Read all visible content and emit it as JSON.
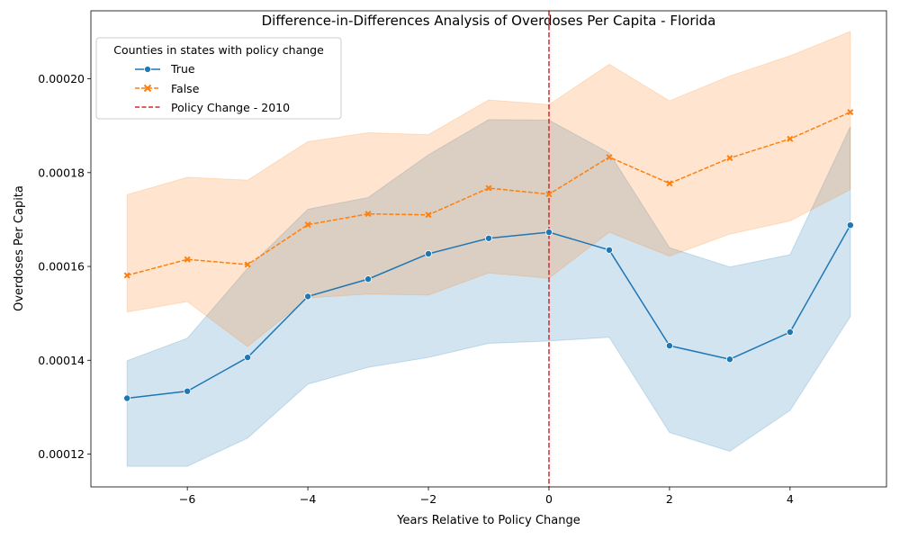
{
  "chart_data": {
    "type": "line",
    "title": "Difference-in-Differences Analysis of Overdoses Per Capita - Florida",
    "xlabel": "Years Relative to Policy Change",
    "ylabel": "Overdoses Per Capita",
    "xlim": [
      -7.6,
      5.6
    ],
    "ylim": [
      0.000113,
      0.0002145
    ],
    "x": [
      -7,
      -6,
      -5,
      -4,
      -3,
      -2,
      -1,
      0,
      1,
      2,
      3,
      4,
      5
    ],
    "x_ticks": [
      -6,
      -4,
      -2,
      0,
      2,
      4
    ],
    "x_tick_labels": [
      "−6",
      "−4",
      "−2",
      "0",
      "2",
      "4"
    ],
    "y_ticks": [
      0.00012,
      0.00014,
      0.00016,
      0.00018,
      0.0002
    ],
    "y_tick_labels": [
      "0.00012",
      "0.00014",
      "0.00016",
      "0.00018",
      "0.00020"
    ],
    "grid": false,
    "legend": {
      "title": "Counties in states with policy change",
      "placement": "top-left",
      "entries": [
        "True",
        "False",
        "Policy Change - 2010"
      ]
    },
    "series": [
      {
        "name": "True",
        "color": "#1f77b4",
        "line_style": "solid",
        "marker": "circle",
        "values": [
          0.0001319,
          0.0001334,
          0.0001406,
          0.0001536,
          0.0001573,
          0.0001627,
          0.000166,
          0.0001673,
          0.0001635,
          0.0001431,
          0.0001402,
          0.000146,
          0.0001688
        ],
        "ci_lower": [
          0.0001174,
          0.0001174,
          0.0001234,
          0.0001349,
          0.0001385,
          0.0001406,
          0.0001436,
          0.0001441,
          0.0001449,
          0.0001246,
          0.0001206,
          0.0001293,
          0.0001493
        ],
        "ci_upper": [
          0.0001399,
          0.0001447,
          0.0001596,
          0.0001722,
          0.0001747,
          0.0001838,
          0.0001913,
          0.0001912,
          0.0001842,
          0.000164,
          0.0001599,
          0.0001625,
          0.0001898
        ]
      },
      {
        "name": "False",
        "color": "#ff7f0e",
        "line_style": "dashed",
        "marker": "x",
        "values": [
          0.0001581,
          0.0001615,
          0.0001604,
          0.0001689,
          0.0001712,
          0.000171,
          0.0001767,
          0.0001754,
          0.0001833,
          0.0001777,
          0.0001831,
          0.0001872,
          0.0001929
        ],
        "ci_lower": [
          0.0001503,
          0.0001525,
          0.0001429,
          0.0001533,
          0.0001541,
          0.0001539,
          0.0001586,
          0.0001575,
          0.0001673,
          0.0001622,
          0.0001669,
          0.0001697,
          0.0001764
        ],
        "ci_upper": [
          0.0001753,
          0.000179,
          0.0001784,
          0.0001866,
          0.0001885,
          0.0001881,
          0.0001955,
          0.0001945,
          0.0002031,
          0.0001953,
          0.0002006,
          0.0002049,
          0.0002101
        ]
      }
    ],
    "vline": {
      "x": 0,
      "label": "Policy Change - 2010",
      "color": "#d62728",
      "line_style": "dashed"
    }
  }
}
